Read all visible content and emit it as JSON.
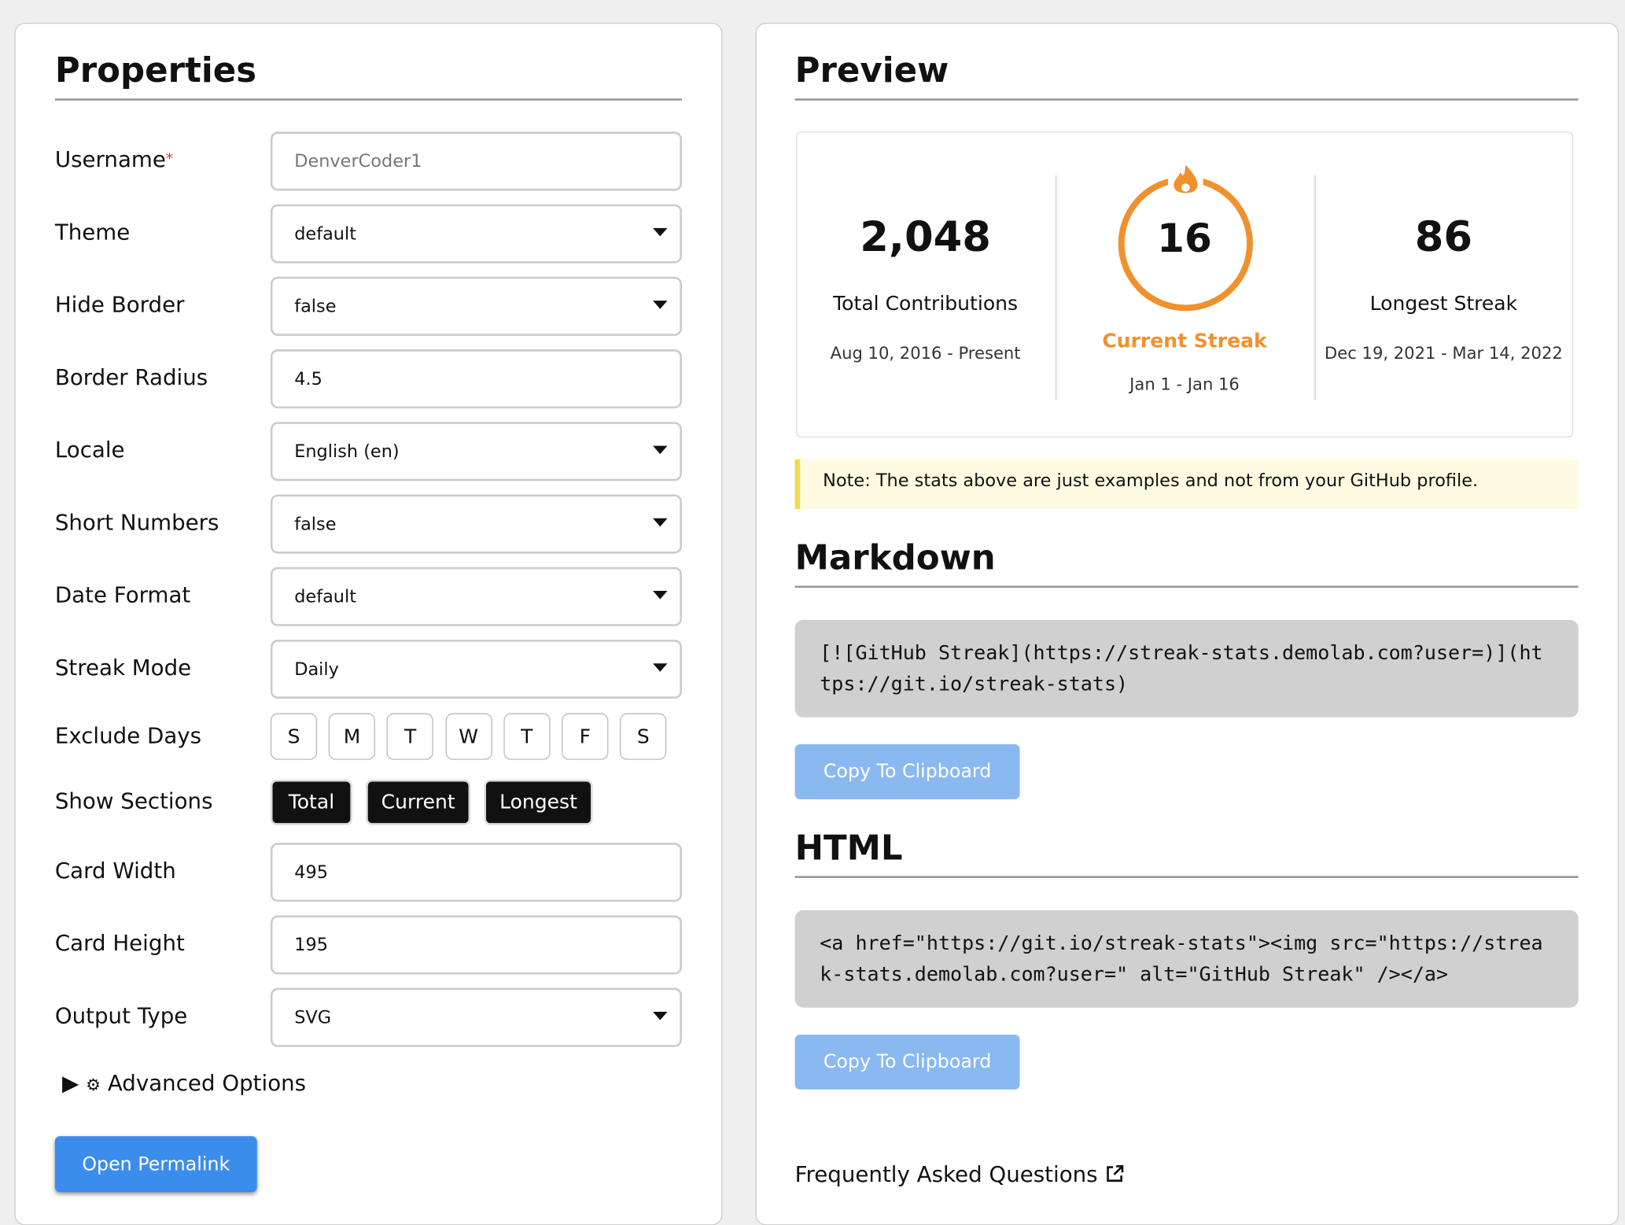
{
  "properties": {
    "title": "Properties",
    "fields": [
      {
        "label": "Username",
        "required": "*",
        "type": "input",
        "placeholder": "DenverCoder1"
      },
      {
        "label": "Theme",
        "type": "select",
        "value": "default"
      },
      {
        "label": "Hide Border",
        "type": "select",
        "value": "false"
      },
      {
        "label": "Border Radius",
        "type": "input",
        "value": "4.5"
      },
      {
        "label": "Locale",
        "type": "select",
        "value": "English (en)"
      },
      {
        "label": "Short Numbers",
        "type": "select",
        "value": "false"
      },
      {
        "label": "Date Format",
        "type": "select",
        "value": "default"
      },
      {
        "label": "Streak Mode",
        "type": "select",
        "value": "Daily"
      },
      {
        "label": "Exclude Days",
        "type": "days",
        "options": [
          "S",
          "M",
          "T",
          "W",
          "T",
          "F",
          "S"
        ]
      },
      {
        "label": "Show Sections",
        "type": "sections",
        "options": [
          "Total",
          "Current",
          "Longest"
        ]
      },
      {
        "label": "Card Width",
        "type": "input",
        "value": "495"
      },
      {
        "label": "Card Height",
        "type": "input",
        "value": "195"
      },
      {
        "label": "Output Type",
        "type": "select",
        "value": "SVG"
      }
    ],
    "advanced": "Advanced Options",
    "permalink": "Open Permalink"
  },
  "preview": {
    "title": "Preview",
    "stats": [
      {
        "value": "2,048",
        "label": "Total Contributions",
        "range": "Aug 10, 2016 - Present"
      },
      {
        "value": "16",
        "label": "Current Streak",
        "range": "Jan 1 - Jan 16"
      },
      {
        "value": "86",
        "label": "Longest Streak",
        "range": "Dec 19, 2021 - Mar 14, 2022"
      }
    ],
    "note": "Note: The stats above are just examples and not from your GitHub profile."
  },
  "markdown": {
    "title": "Markdown",
    "code": "[![GitHub Streak](https://streak-stats.demolab.com?user=)](https://git.io/streak-stats)",
    "button": "Copy To Clipboard"
  },
  "html": {
    "title": "HTML",
    "code": "<a href=\"https://git.io/streak-stats\"><img src=\"https://streak-stats.demolab.com?user=\" alt=\"GitHub Streak\" /></a>",
    "button": "Copy To Clipboard"
  },
  "faq": "Frequently Asked Questions"
}
